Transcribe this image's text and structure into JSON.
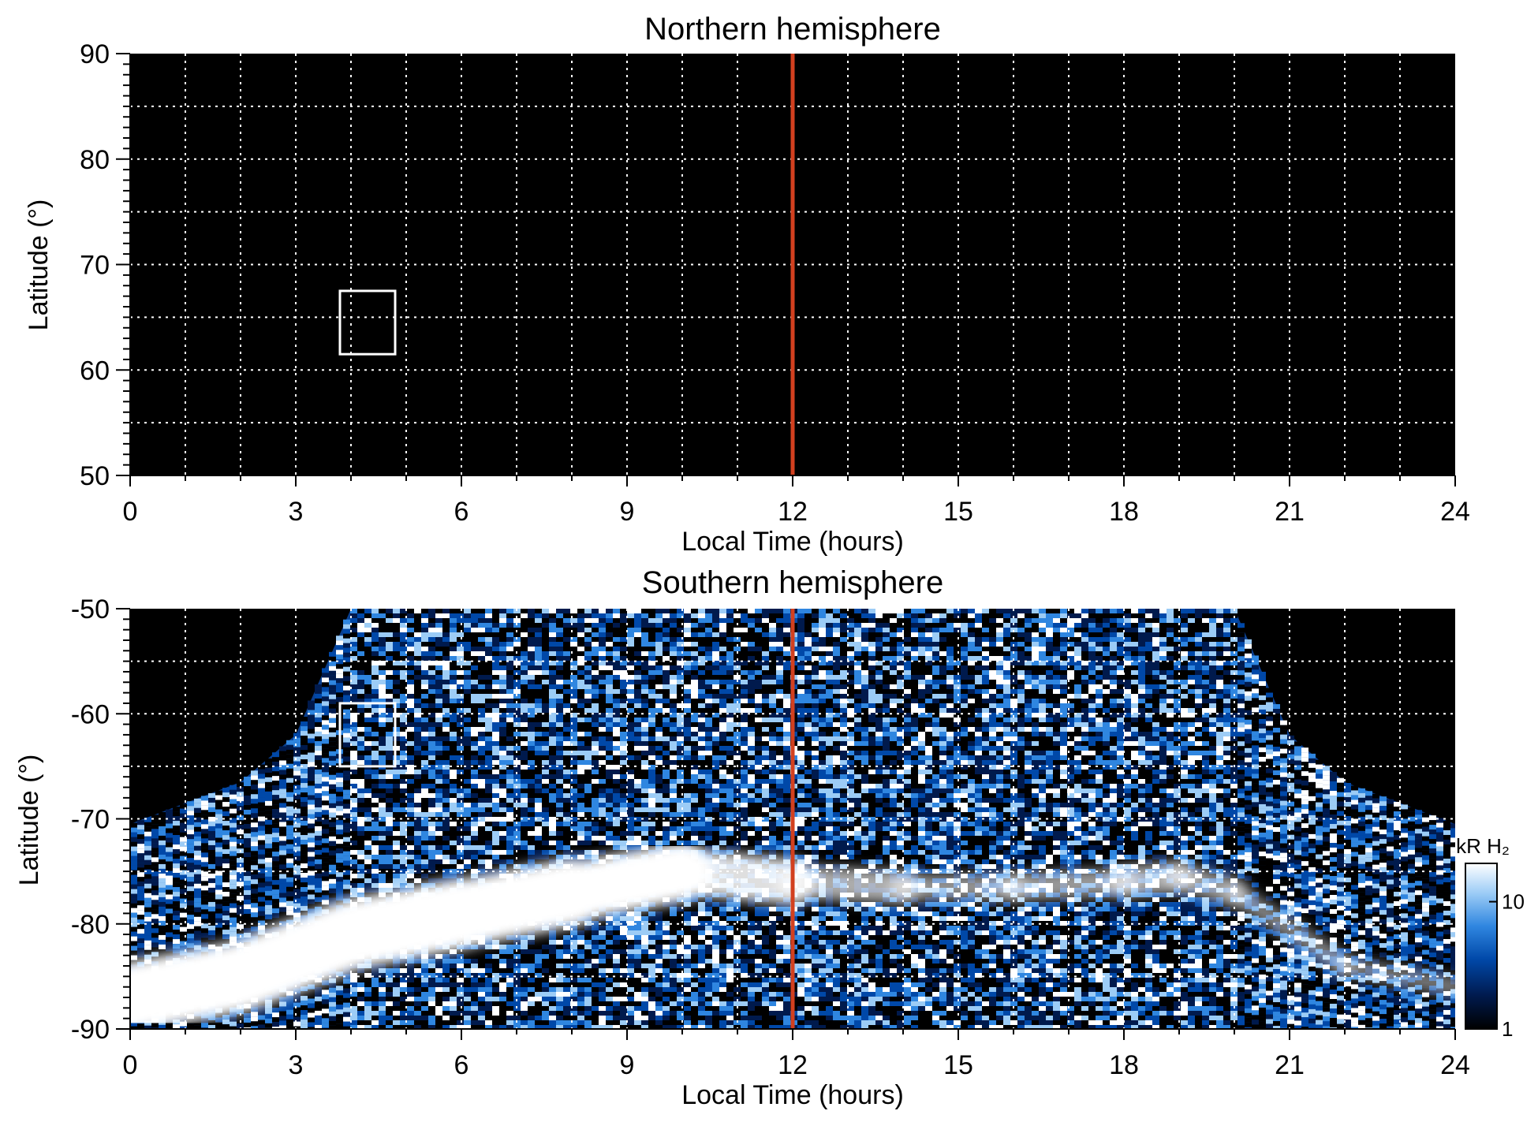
{
  "chart_data": [
    {
      "type": "heatmap",
      "title": "Northern hemisphere",
      "xlabel": "Local Time (hours)",
      "ylabel": "Latitude (°)",
      "xlim": [
        0,
        24
      ],
      "ylim": [
        50,
        90
      ],
      "x_ticks": [
        "0",
        "3",
        "6",
        "9",
        "12",
        "15",
        "18",
        "21",
        "24"
      ],
      "y_ticks": [
        "50",
        "60",
        "70",
        "80",
        "90"
      ],
      "grid": true,
      "noon_line": {
        "x": 12,
        "color": "#d2401f"
      },
      "box": {
        "x": [
          3.8,
          4.8
        ],
        "y": [
          61.5,
          67.5
        ]
      },
      "emission": "none"
    },
    {
      "type": "heatmap",
      "title": "Southern hemisphere",
      "xlabel": "Local Time (hours)",
      "ylabel": "Latitude (°)",
      "xlim": [
        0,
        24
      ],
      "ylim": [
        -90,
        -50
      ],
      "x_ticks": [
        "0",
        "3",
        "6",
        "9",
        "12",
        "15",
        "18",
        "21",
        "24"
      ],
      "y_ticks": [
        "-90",
        "-80",
        "-70",
        "-60",
        "-50"
      ],
      "grid": true,
      "noon_line": {
        "x": 12,
        "color": "#d2401f"
      },
      "box": {
        "x": [
          3.8,
          4.8
        ],
        "y": [
          -65,
          -59
        ]
      },
      "coverage_edge": {
        "local_time": [
          0,
          2,
          3,
          4,
          20,
          21,
          22,
          24
        ],
        "latitude": [
          -70.5,
          -66.5,
          -62,
          -50,
          -50,
          -62,
          -66.5,
          -70.5
        ]
      },
      "auroral_oval": {
        "local_time": [
          0,
          2,
          4,
          6,
          8,
          10,
          12,
          14,
          16,
          18,
          19,
          20,
          22,
          24
        ],
        "latitude": [
          -87,
          -85,
          -81,
          -79,
          -77,
          -75,
          -76,
          -76.5,
          -76.5,
          -76,
          -75.5,
          -77,
          -84,
          -86
        ],
        "brightness_kR": [
          20,
          20,
          20,
          20,
          18,
          15,
          10,
          7,
          6,
          8,
          8,
          6,
          4,
          5
        ]
      },
      "colorbar": {
        "label": "kR H₂",
        "ticks": [
          "1",
          "10"
        ],
        "range_kR": [
          1,
          20
        ],
        "scale": "log",
        "colors": [
          "#000000",
          "#001a4d",
          "#0048a8",
          "#2f86e0",
          "#9cccf6",
          "#ffffff"
        ]
      }
    }
  ]
}
